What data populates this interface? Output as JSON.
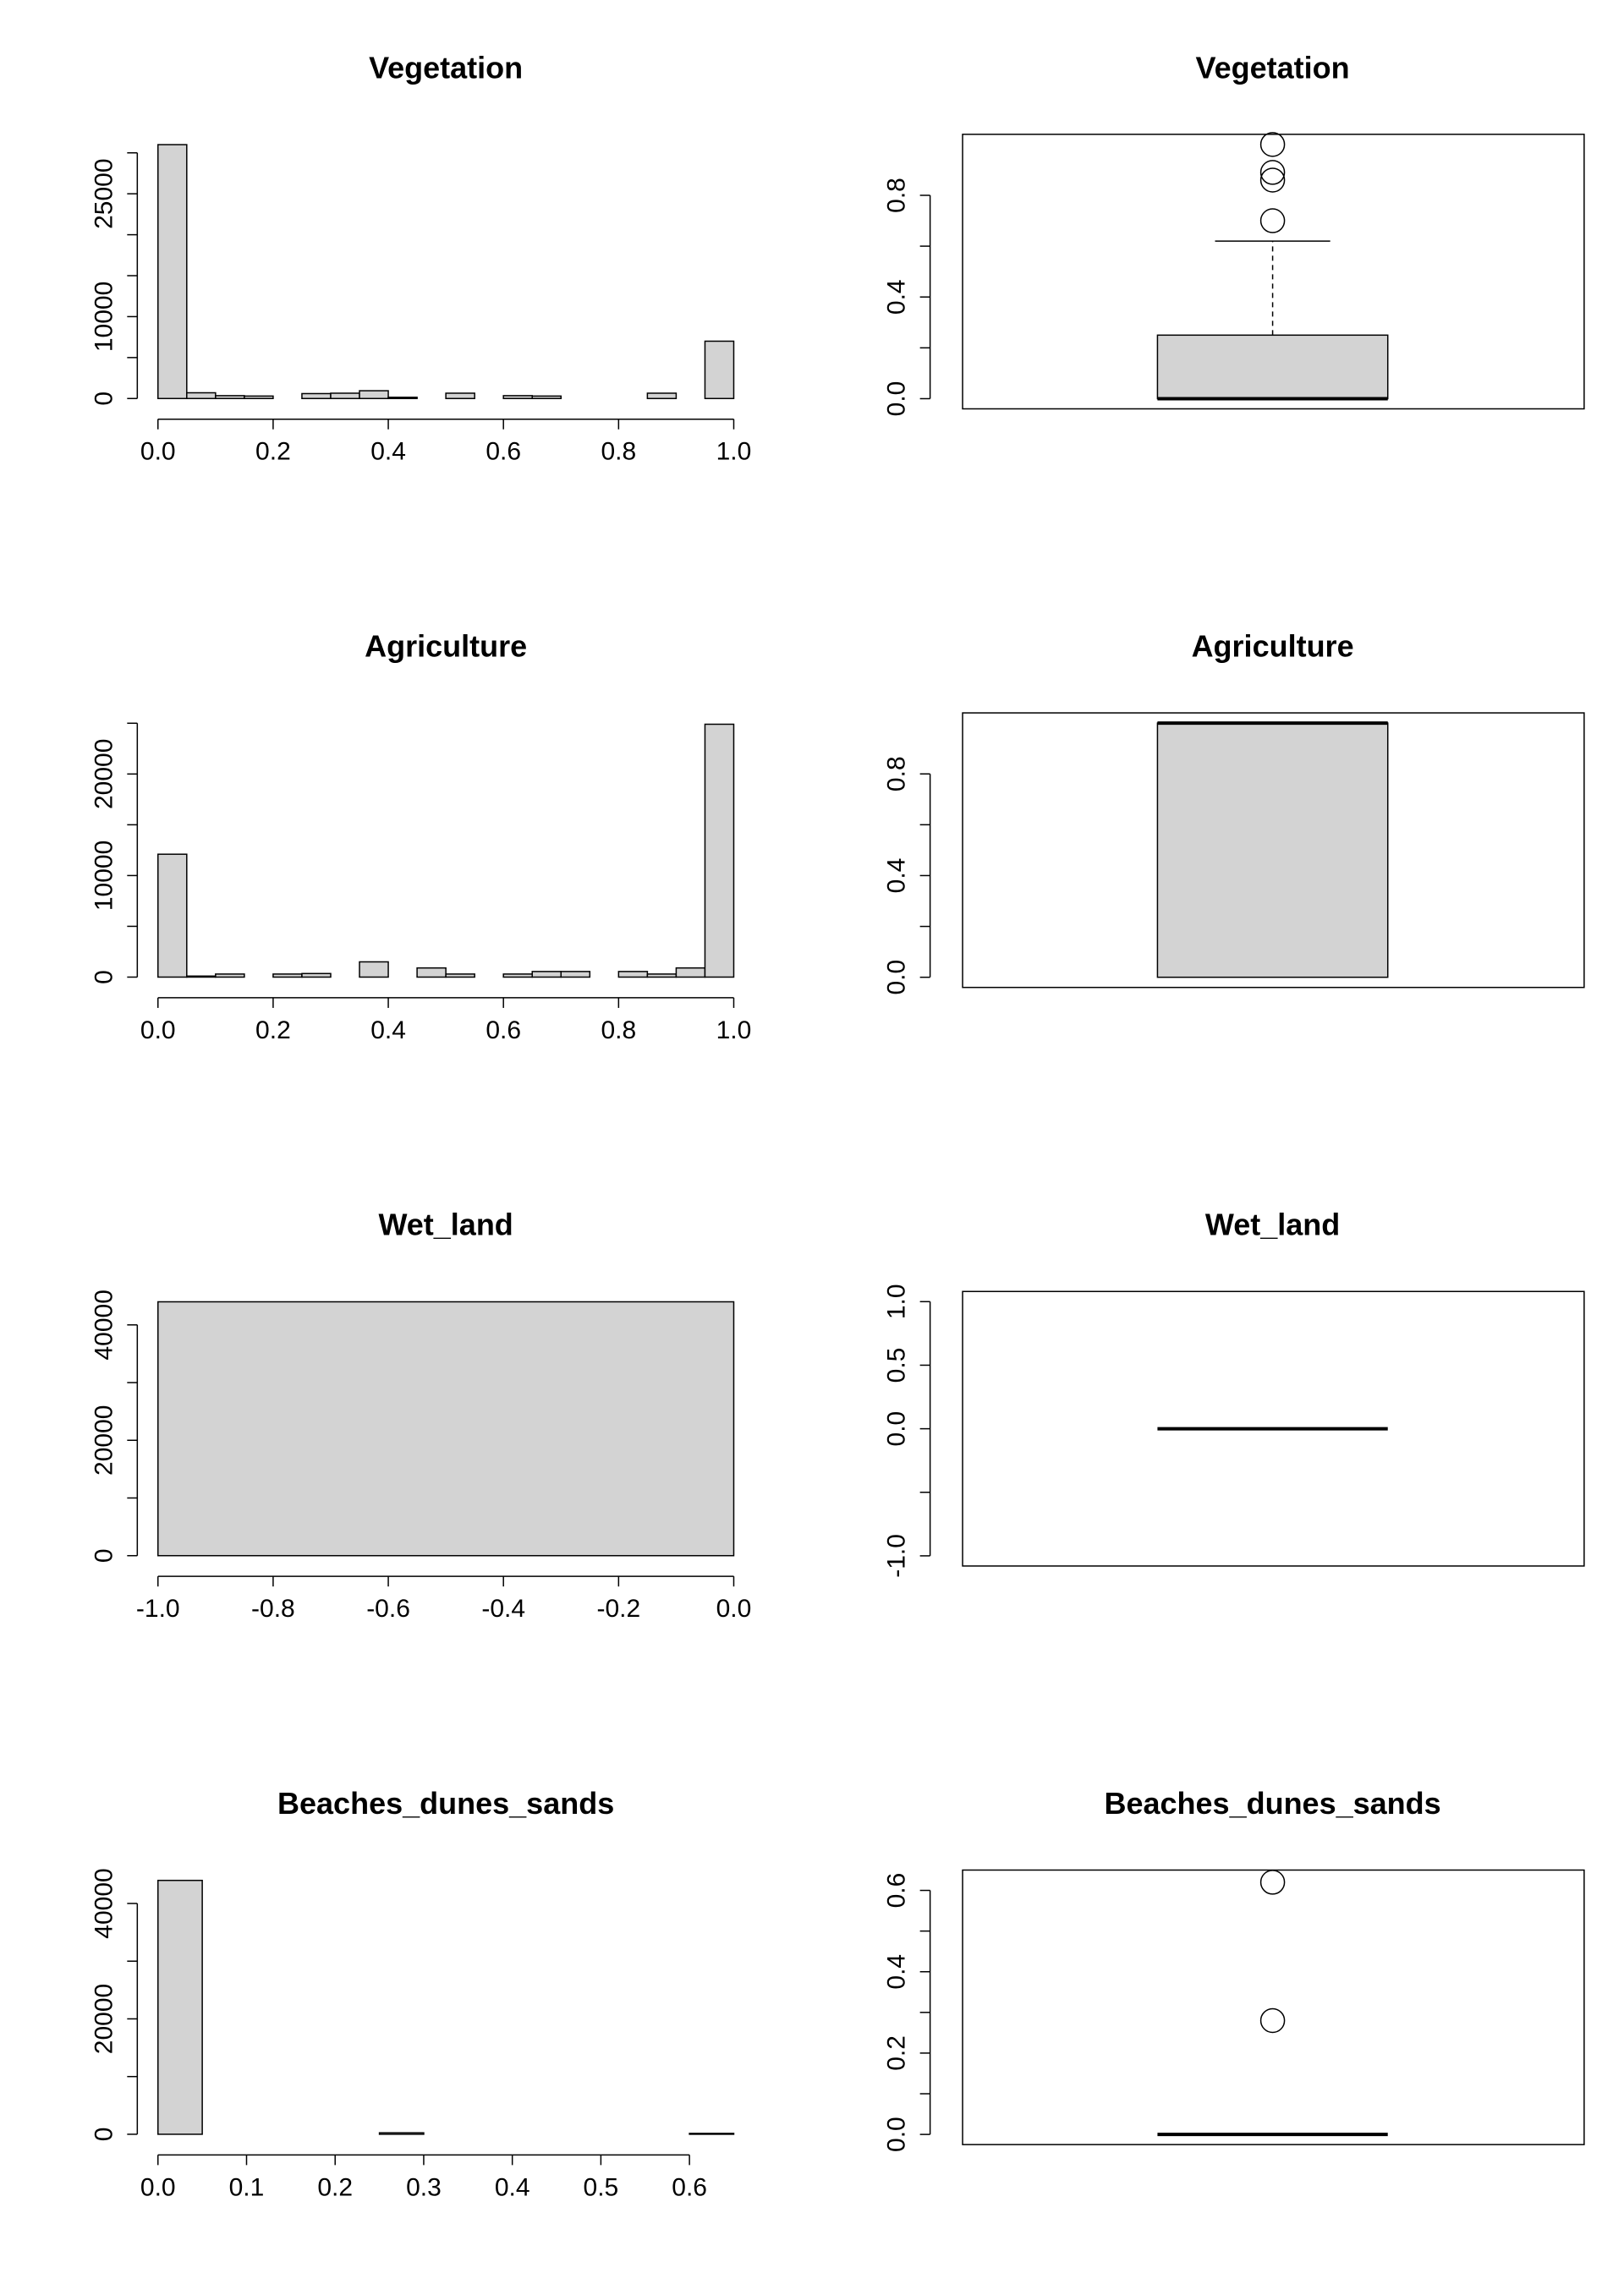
{
  "chart_data": [
    {
      "type": "bar",
      "kind": "histogram",
      "title": "Vegetation",
      "xlim": [
        0,
        1
      ],
      "ylim": [
        0,
        31000
      ],
      "x_ticks": [
        {
          "v": 0,
          "label": "0.0"
        },
        {
          "v": 0.2,
          "label": "0.2"
        },
        {
          "v": 0.4,
          "label": "0.4"
        },
        {
          "v": 0.6,
          "label": "0.6"
        },
        {
          "v": 0.8,
          "label": "0.8"
        },
        {
          "v": 1,
          "label": "1.0"
        }
      ],
      "y_ticks": [
        {
          "v": 0,
          "label": "0"
        },
        {
          "v": 5000,
          "label": ""
        },
        {
          "v": 10000,
          "label": "10000"
        },
        {
          "v": 15000,
          "label": ""
        },
        {
          "v": 20000,
          "label": ""
        },
        {
          "v": 25000,
          "label": "25000"
        },
        {
          "v": 30000,
          "label": ""
        }
      ],
      "bins": [
        {
          "start": 0.0,
          "end": 0.05,
          "count": 31000
        },
        {
          "start": 0.05,
          "end": 0.1,
          "count": 700
        },
        {
          "start": 0.1,
          "end": 0.15,
          "count": 350
        },
        {
          "start": 0.15,
          "end": 0.2,
          "count": 300
        },
        {
          "start": 0.2,
          "end": 0.25,
          "count": 0
        },
        {
          "start": 0.25,
          "end": 0.3,
          "count": 600
        },
        {
          "start": 0.3,
          "end": 0.35,
          "count": 650
        },
        {
          "start": 0.35,
          "end": 0.4,
          "count": 950
        },
        {
          "start": 0.4,
          "end": 0.45,
          "count": 150
        },
        {
          "start": 0.45,
          "end": 0.5,
          "count": 0
        },
        {
          "start": 0.5,
          "end": 0.55,
          "count": 650
        },
        {
          "start": 0.55,
          "end": 0.6,
          "count": 0
        },
        {
          "start": 0.6,
          "end": 0.65,
          "count": 350
        },
        {
          "start": 0.65,
          "end": 0.7,
          "count": 300
        },
        {
          "start": 0.7,
          "end": 0.75,
          "count": 0
        },
        {
          "start": 0.75,
          "end": 0.8,
          "count": 0
        },
        {
          "start": 0.8,
          "end": 0.85,
          "count": 0
        },
        {
          "start": 0.85,
          "end": 0.9,
          "count": 650
        },
        {
          "start": 0.9,
          "end": 0.95,
          "count": 0
        },
        {
          "start": 0.95,
          "end": 1.0,
          "count": 7000
        }
      ]
    },
    {
      "type": "box",
      "title": "Vegetation",
      "ylim": [
        -0.04,
        1.04
      ],
      "y_ticks": [
        {
          "v": 0,
          "label": "0.0"
        },
        {
          "v": 0.2,
          "label": ""
        },
        {
          "v": 0.4,
          "label": "0.4"
        },
        {
          "v": 0.6,
          "label": ""
        },
        {
          "v": 0.8,
          "label": "0.8"
        }
      ],
      "box": {
        "whisker_low": 0,
        "q1": 0,
        "median": 0,
        "q3": 0.25,
        "whisker_high": 0.62
      },
      "outliers": [
        0.7,
        0.86,
        0.89,
        1.0
      ]
    },
    {
      "type": "bar",
      "kind": "histogram",
      "title": "Agriculture",
      "xlim": [
        0,
        1
      ],
      "ylim": [
        0,
        25000
      ],
      "x_ticks": [
        {
          "v": 0,
          "label": "0.0"
        },
        {
          "v": 0.2,
          "label": "0.2"
        },
        {
          "v": 0.4,
          "label": "0.4"
        },
        {
          "v": 0.6,
          "label": "0.6"
        },
        {
          "v": 0.8,
          "label": "0.8"
        },
        {
          "v": 1,
          "label": "1.0"
        }
      ],
      "y_ticks": [
        {
          "v": 0,
          "label": "0"
        },
        {
          "v": 5000,
          "label": ""
        },
        {
          "v": 10000,
          "label": "10000"
        },
        {
          "v": 15000,
          "label": ""
        },
        {
          "v": 20000,
          "label": "20000"
        },
        {
          "v": 25000,
          "label": ""
        }
      ],
      "bins": [
        {
          "start": 0.0,
          "end": 0.05,
          "count": 12100
        },
        {
          "start": 0.05,
          "end": 0.1,
          "count": 100
        },
        {
          "start": 0.1,
          "end": 0.15,
          "count": 300
        },
        {
          "start": 0.15,
          "end": 0.2,
          "count": 0
        },
        {
          "start": 0.2,
          "end": 0.25,
          "count": 300
        },
        {
          "start": 0.25,
          "end": 0.3,
          "count": 350
        },
        {
          "start": 0.3,
          "end": 0.35,
          "count": 0
        },
        {
          "start": 0.35,
          "end": 0.4,
          "count": 1500
        },
        {
          "start": 0.4,
          "end": 0.45,
          "count": 0
        },
        {
          "start": 0.45,
          "end": 0.5,
          "count": 900
        },
        {
          "start": 0.5,
          "end": 0.55,
          "count": 300
        },
        {
          "start": 0.55,
          "end": 0.6,
          "count": 0
        },
        {
          "start": 0.6,
          "end": 0.65,
          "count": 300
        },
        {
          "start": 0.65,
          "end": 0.7,
          "count": 550
        },
        {
          "start": 0.7,
          "end": 0.75,
          "count": 550
        },
        {
          "start": 0.75,
          "end": 0.8,
          "count": 0
        },
        {
          "start": 0.8,
          "end": 0.85,
          "count": 550
        },
        {
          "start": 0.85,
          "end": 0.9,
          "count": 300
        },
        {
          "start": 0.9,
          "end": 0.95,
          "count": 900
        },
        {
          "start": 0.95,
          "end": 1.0,
          "count": 24900
        }
      ]
    },
    {
      "type": "box",
      "title": "Agriculture",
      "ylim": [
        -0.04,
        1.04
      ],
      "y_ticks": [
        {
          "v": 0,
          "label": "0.0"
        },
        {
          "v": 0.2,
          "label": ""
        },
        {
          "v": 0.4,
          "label": "0.4"
        },
        {
          "v": 0.6,
          "label": ""
        },
        {
          "v": 0.8,
          "label": "0.8"
        }
      ],
      "box": {
        "whisker_low": 0,
        "q1": 0,
        "median": 1,
        "q3": 1,
        "whisker_high": 1
      },
      "outliers": []
    },
    {
      "type": "bar",
      "kind": "histogram",
      "title": "Wet_land",
      "xlim": [
        -1,
        0
      ],
      "ylim": [
        0,
        44000
      ],
      "x_ticks": [
        {
          "v": -1,
          "label": "-1.0"
        },
        {
          "v": -0.8,
          "label": "-0.8"
        },
        {
          "v": -0.6,
          "label": "-0.6"
        },
        {
          "v": -0.4,
          "label": "-0.4"
        },
        {
          "v": -0.2,
          "label": "-0.2"
        },
        {
          "v": 0,
          "label": "0.0"
        }
      ],
      "y_ticks": [
        {
          "v": 0,
          "label": "0"
        },
        {
          "v": 10000,
          "label": ""
        },
        {
          "v": 20000,
          "label": "20000"
        },
        {
          "v": 30000,
          "label": ""
        },
        {
          "v": 40000,
          "label": "40000"
        }
      ],
      "bins": [
        {
          "start": -1.0,
          "end": 0.0,
          "count": 44000
        }
      ]
    },
    {
      "type": "box",
      "title": "Wet_land",
      "ylim": [
        -1.08,
        1.08
      ],
      "y_ticks": [
        {
          "v": -1,
          "label": "-1.0"
        },
        {
          "v": -0.5,
          "label": ""
        },
        {
          "v": 0,
          "label": "0.0"
        },
        {
          "v": 0.5,
          "label": "0.5"
        },
        {
          "v": 1,
          "label": "1.0"
        }
      ],
      "box": {
        "whisker_low": 0,
        "q1": 0,
        "median": 0,
        "q3": 0,
        "whisker_high": 0
      },
      "outliers": []
    },
    {
      "type": "bar",
      "kind": "histogram",
      "title": "Beaches_dunes_sands",
      "xlim": [
        0,
        0.65
      ],
      "ylim": [
        0,
        44000
      ],
      "x_ticks": [
        {
          "v": 0,
          "label": "0.0"
        },
        {
          "v": 0.1,
          "label": "0.1"
        },
        {
          "v": 0.2,
          "label": "0.2"
        },
        {
          "v": 0.3,
          "label": "0.3"
        },
        {
          "v": 0.4,
          "label": "0.4"
        },
        {
          "v": 0.5,
          "label": "0.5"
        },
        {
          "v": 0.6,
          "label": "0.6"
        }
      ],
      "y_ticks": [
        {
          "v": 0,
          "label": "0"
        },
        {
          "v": 10000,
          "label": ""
        },
        {
          "v": 20000,
          "label": "20000"
        },
        {
          "v": 30000,
          "label": ""
        },
        {
          "v": 40000,
          "label": "40000"
        }
      ],
      "bins": [
        {
          "start": 0.0,
          "end": 0.05,
          "count": 44000
        },
        {
          "start": 0.05,
          "end": 0.1,
          "count": 0
        },
        {
          "start": 0.1,
          "end": 0.15,
          "count": 0
        },
        {
          "start": 0.15,
          "end": 0.2,
          "count": 0
        },
        {
          "start": 0.2,
          "end": 0.25,
          "count": 0
        },
        {
          "start": 0.25,
          "end": 0.3,
          "count": 250
        },
        {
          "start": 0.3,
          "end": 0.35,
          "count": 0
        },
        {
          "start": 0.35,
          "end": 0.4,
          "count": 0
        },
        {
          "start": 0.4,
          "end": 0.45,
          "count": 0
        },
        {
          "start": 0.45,
          "end": 0.5,
          "count": 0
        },
        {
          "start": 0.5,
          "end": 0.55,
          "count": 0
        },
        {
          "start": 0.55,
          "end": 0.6,
          "count": 0
        },
        {
          "start": 0.6,
          "end": 0.65,
          "count": 150
        }
      ]
    },
    {
      "type": "box",
      "title": "Beaches_dunes_sands",
      "ylim": [
        -0.025,
        0.65
      ],
      "y_ticks": [
        {
          "v": 0,
          "label": "0.0"
        },
        {
          "v": 0.1,
          "label": ""
        },
        {
          "v": 0.2,
          "label": "0.2"
        },
        {
          "v": 0.3,
          "label": ""
        },
        {
          "v": 0.4,
          "label": "0.4"
        },
        {
          "v": 0.5,
          "label": ""
        },
        {
          "v": 0.6,
          "label": "0.6"
        }
      ],
      "box": {
        "whisker_low": 0,
        "q1": 0,
        "median": 0,
        "q3": 0,
        "whisker_high": 0
      },
      "outliers": [
        0.28,
        0.62
      ]
    }
  ]
}
